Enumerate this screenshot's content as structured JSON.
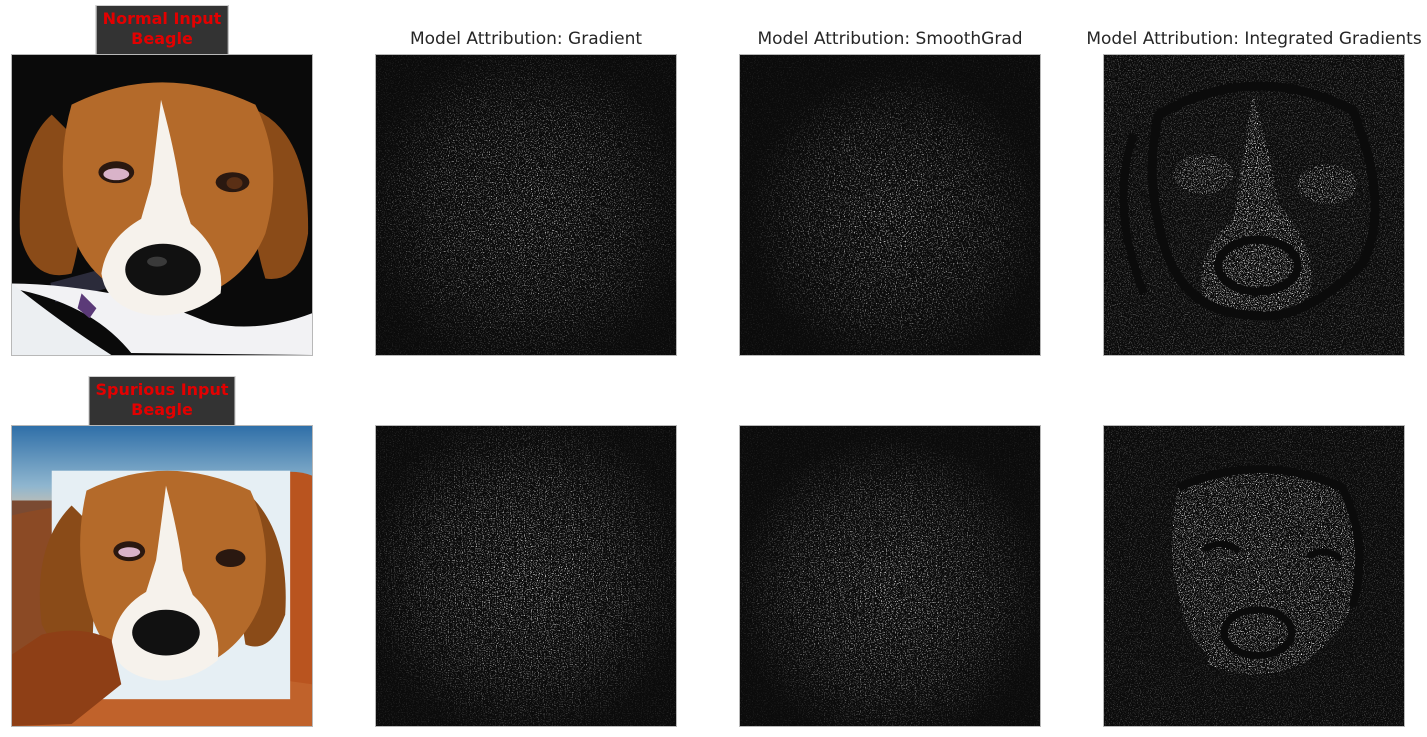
{
  "column_titles": {
    "gradient": "Model Attribution: Gradient",
    "smoothgrad": "Model Attribution: SmoothGrad",
    "integrated": "Model Attribution: Integrated Gradients"
  },
  "rows": [
    {
      "label_line1": "Normal Input",
      "label_line2": "Beagle"
    },
    {
      "label_line1": "Spurious Input",
      "label_line2": "Beagle"
    }
  ],
  "colors": {
    "label_text": "#e30000",
    "label_bg": "#333333",
    "saliency_bg": "#0b0b0b"
  }
}
